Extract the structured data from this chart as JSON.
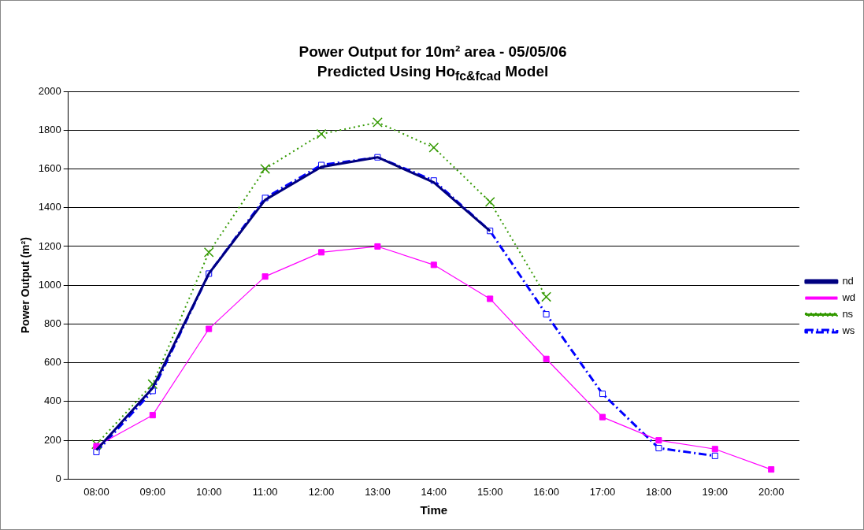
{
  "chart_data": {
    "type": "line",
    "title": "Power Output for 10m² area - 05/05/06",
    "subtitle": "Predicted Using Ho$_{fc&fcad}$ Model",
    "xlabel": "Time",
    "ylabel": "Power Output (m²)",
    "categories": [
      "08:00",
      "09:00",
      "10:00",
      "11:00",
      "12:00",
      "13:00",
      "14:00",
      "15:00",
      "16:00",
      "17:00",
      "18:00",
      "19:00",
      "20:00"
    ],
    "series": [
      {
        "name": "nd",
        "color": "#000080",
        "marker": "none",
        "line_style": "solid",
        "values": [
          150,
          470,
          1060,
          1440,
          1610,
          1660,
          1530,
          1280,
          null,
          null,
          null,
          null,
          null
        ]
      },
      {
        "name": "wd",
        "color": "#ff00ff",
        "marker": "square",
        "line_style": "solid",
        "values": [
          170,
          330,
          775,
          1045,
          1170,
          1200,
          1105,
          930,
          620,
          320,
          200,
          155,
          50
        ]
      },
      {
        "name": "ns",
        "color": "#339900",
        "marker": "cross",
        "line_style": "dotted",
        "values": [
          180,
          490,
          1170,
          1600,
          1780,
          1840,
          1710,
          1430,
          940,
          null,
          null,
          null,
          null
        ]
      },
      {
        "name": "ws",
        "color": "#0000ff",
        "marker": "square",
        "line_style": "dashed",
        "values": [
          140,
          455,
          1060,
          1450,
          1620,
          1660,
          1540,
          1280,
          850,
          440,
          160,
          120,
          null
        ]
      }
    ],
    "ylim": [
      0,
      2000
    ],
    "yticks": [
      0,
      200,
      400,
      600,
      800,
      1000,
      1200,
      1400,
      1600,
      1800,
      2000
    ],
    "grid": "y",
    "legend": "right"
  }
}
